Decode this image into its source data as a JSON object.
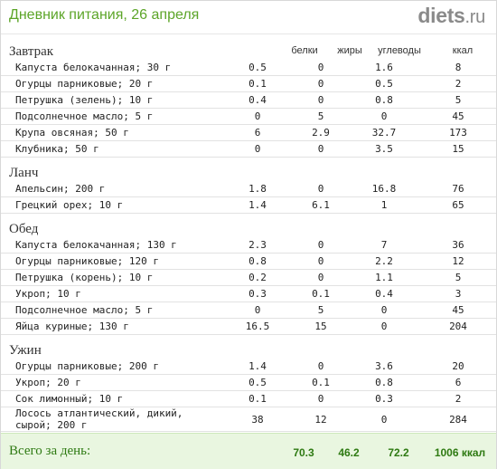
{
  "header": {
    "title": "Дневник питания, 26 апреля",
    "logo_main": "diets",
    "logo_tld": ".ru"
  },
  "columns": {
    "protein": "белки",
    "fat": "жиры",
    "carbs": "углеводы",
    "kcal": "ккал"
  },
  "meals": [
    {
      "name": "Завтрак",
      "items": [
        {
          "food": "Капуста белокачанная; 30 г",
          "protein": "0.5",
          "fat": "0",
          "carbs": "1.6",
          "kcal": "8"
        },
        {
          "food": "Огурцы парниковые; 20 г",
          "protein": "0.1",
          "fat": "0",
          "carbs": "0.5",
          "kcal": "2"
        },
        {
          "food": "Петрушка (зелень); 10 г",
          "protein": "0.4",
          "fat": "0",
          "carbs": "0.8",
          "kcal": "5"
        },
        {
          "food": "Подсолнечное масло; 5 г",
          "protein": "0",
          "fat": "5",
          "carbs": "0",
          "kcal": "45"
        },
        {
          "food": "Крупа овсяная; 50 г",
          "protein": "6",
          "fat": "2.9",
          "carbs": "32.7",
          "kcal": "173"
        },
        {
          "food": "Клубника; 50 г",
          "protein": "0",
          "fat": "0",
          "carbs": "3.5",
          "kcal": "15"
        }
      ]
    },
    {
      "name": "Ланч",
      "items": [
        {
          "food": "Апельсин; 200 г",
          "protein": "1.8",
          "fat": "0",
          "carbs": "16.8",
          "kcal": "76"
        },
        {
          "food": "Грецкий орех; 10 г",
          "protein": "1.4",
          "fat": "6.1",
          "carbs": "1",
          "kcal": "65"
        }
      ]
    },
    {
      "name": "Обед",
      "items": [
        {
          "food": "Капуста белокачанная; 130 г",
          "protein": "2.3",
          "fat": "0",
          "carbs": "7",
          "kcal": "36"
        },
        {
          "food": "Огурцы парниковые; 120 г",
          "protein": "0.8",
          "fat": "0",
          "carbs": "2.2",
          "kcal": "12"
        },
        {
          "food": "Петрушка (корень); 10 г",
          "protein": "0.2",
          "fat": "0",
          "carbs": "1.1",
          "kcal": "5"
        },
        {
          "food": "Укроп; 10 г",
          "protein": "0.3",
          "fat": "0.1",
          "carbs": "0.4",
          "kcal": "3"
        },
        {
          "food": "Подсолнечное масло; 5 г",
          "protein": "0",
          "fat": "5",
          "carbs": "0",
          "kcal": "45"
        },
        {
          "food": "Яйца куриные; 130 г",
          "protein": "16.5",
          "fat": "15",
          "carbs": "0",
          "kcal": "204"
        }
      ]
    },
    {
      "name": "Ужин",
      "items": [
        {
          "food": "Огурцы парниковые; 200 г",
          "protein": "1.4",
          "fat": "0",
          "carbs": "3.6",
          "kcal": "20"
        },
        {
          "food": "Укроп; 20 г",
          "protein": "0.5",
          "fat": "0.1",
          "carbs": "0.8",
          "kcal": "6"
        },
        {
          "food": "Сок лимонный; 10 г",
          "protein": "0.1",
          "fat": "0",
          "carbs": "0.3",
          "kcal": "2"
        },
        {
          "food": "Лосось атлантический, дикий, сырой; 200 г",
          "protein": "38",
          "fat": "12",
          "carbs": "0",
          "kcal": "284"
        }
      ]
    }
  ],
  "totals": {
    "label": "Всего за день:",
    "protein": "70.3",
    "fat": "46.2",
    "carbs": "72.2",
    "kcal": "1006 ккал"
  }
}
